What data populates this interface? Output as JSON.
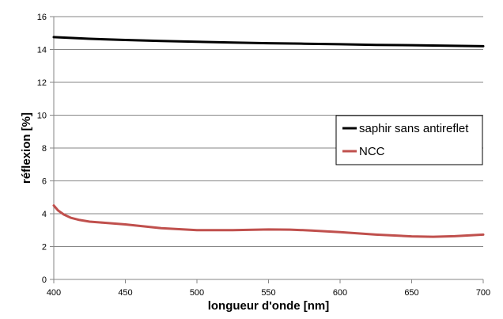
{
  "chart_data": {
    "type": "line",
    "title": "",
    "xlabel": "longueur d'onde [nm]",
    "ylabel": "réflexion [%]",
    "xlim": [
      400,
      700
    ],
    "ylim": [
      0,
      16
    ],
    "xticks": [
      400,
      450,
      500,
      550,
      600,
      650,
      700
    ],
    "yticks": [
      0,
      2,
      4,
      6,
      8,
      10,
      12,
      14,
      16
    ],
    "grid": "horizontal",
    "legend_position": "right",
    "series": [
      {
        "name": "saphir sans antireflet",
        "color": "#000000",
        "x": [
          400,
          425,
          450,
          475,
          500,
          525,
          550,
          575,
          600,
          625,
          650,
          675,
          700
        ],
        "y": [
          14.75,
          14.65,
          14.58,
          14.52,
          14.47,
          14.42,
          14.38,
          14.35,
          14.32,
          14.28,
          14.26,
          14.23,
          14.2
        ]
      },
      {
        "name": "NCC",
        "color": "#c0504d",
        "x": [
          400,
          403,
          407,
          412,
          418,
          425,
          435,
          450,
          475,
          500,
          525,
          550,
          565,
          580,
          600,
          625,
          650,
          665,
          680,
          700
        ],
        "y": [
          4.5,
          4.2,
          3.95,
          3.75,
          3.62,
          3.52,
          3.45,
          3.35,
          3.12,
          3.0,
          3.0,
          3.04,
          3.03,
          2.98,
          2.88,
          2.73,
          2.62,
          2.6,
          2.63,
          2.73
        ]
      }
    ]
  }
}
